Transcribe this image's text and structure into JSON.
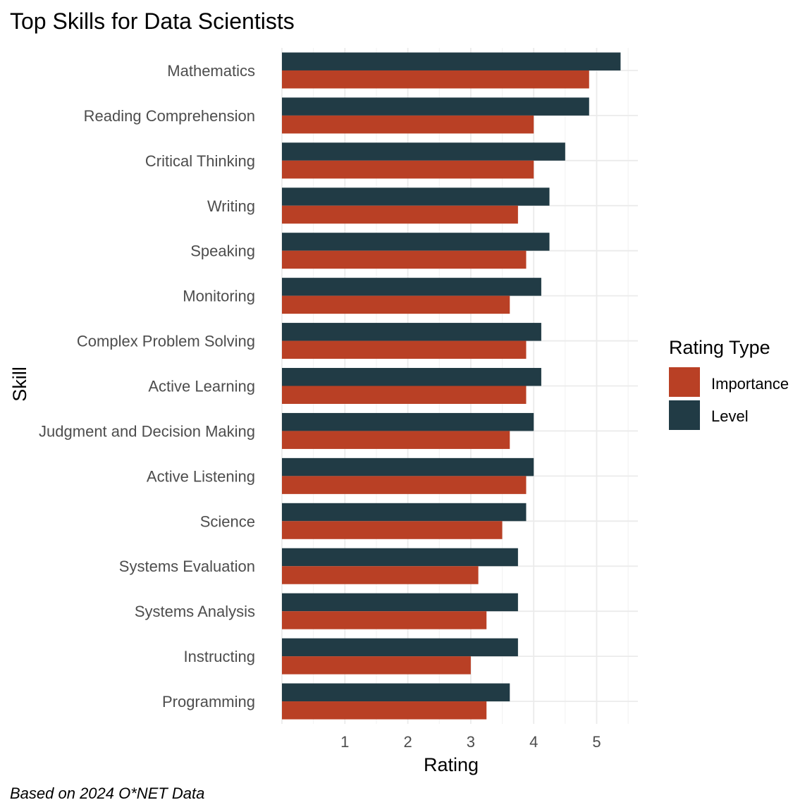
{
  "chart_data": {
    "type": "bar",
    "orientation": "horizontal",
    "title": "Top Skills for Data Scientists",
    "caption": "Based on 2024 O*NET Data",
    "xlabel": "Rating",
    "ylabel": "Skill",
    "xlim": [
      0,
      5.65
    ],
    "xticks": [
      1,
      2,
      3,
      4,
      5
    ],
    "grid": true,
    "categories": [
      "Mathematics",
      "Reading Comprehension",
      "Critical Thinking",
      "Writing",
      "Speaking",
      "Monitoring",
      "Complex Problem Solving",
      "Active Learning",
      "Judgment and Decision Making",
      "Active Listening",
      "Science",
      "Systems Evaluation",
      "Systems Analysis",
      "Instructing",
      "Programming"
    ],
    "series": [
      {
        "name": "Importance",
        "color": "#b94025",
        "values": [
          4.88,
          4.0,
          4.0,
          3.75,
          3.88,
          3.62,
          3.88,
          3.88,
          3.62,
          3.88,
          3.5,
          3.12,
          3.25,
          3.0,
          3.25
        ]
      },
      {
        "name": "Level",
        "color": "#213b45",
        "values": [
          5.38,
          4.88,
          4.5,
          4.25,
          4.25,
          4.12,
          4.12,
          4.12,
          4.0,
          4.0,
          3.88,
          3.75,
          3.75,
          3.75,
          3.62
        ]
      }
    ],
    "legend": {
      "title": "Rating Type",
      "position": "right"
    }
  }
}
